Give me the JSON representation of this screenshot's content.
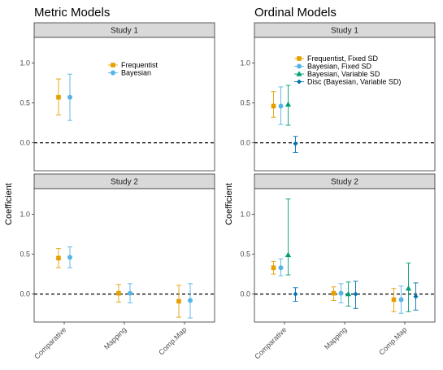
{
  "chart_data": [
    {
      "type": "errorbar",
      "title": "Metric Models",
      "ylabel": "Coefficient",
      "ylim": [
        -0.35,
        1.32
      ],
      "yticks": [
        0.0,
        0.5,
        1.0
      ],
      "yticks_labels": [
        "0.0",
        "0.5",
        "1.0"
      ],
      "categories": [
        "Comparative",
        "Mapping",
        "Comp.Map"
      ],
      "reference_line": 0,
      "legend_position": "top-right",
      "series": [
        {
          "name": "Frequentist",
          "color": "#E69F00",
          "marker": "square"
        },
        {
          "name": "Bayesian",
          "color": "#56B4E9",
          "marker": "circle"
        }
      ],
      "panels": [
        {
          "label": "Study 1",
          "points": [
            {
              "series": 0,
              "category": "Comparative",
              "y": 0.57,
              "lo": 0.35,
              "hi": 0.8
            },
            {
              "series": 1,
              "category": "Comparative",
              "y": 0.57,
              "lo": 0.28,
              "hi": 0.86
            }
          ]
        },
        {
          "label": "Study 2",
          "points": [
            {
              "series": 0,
              "category": "Comparative",
              "y": 0.45,
              "lo": 0.33,
              "hi": 0.57
            },
            {
              "series": 1,
              "category": "Comparative",
              "y": 0.46,
              "lo": 0.33,
              "hi": 0.59
            },
            {
              "series": 0,
              "category": "Mapping",
              "y": 0.01,
              "lo": -0.1,
              "hi": 0.12
            },
            {
              "series": 1,
              "category": "Mapping",
              "y": 0.01,
              "lo": -0.11,
              "hi": 0.13
            },
            {
              "series": 0,
              "category": "Comp.Map",
              "y": -0.09,
              "lo": -0.29,
              "hi": 0.11
            },
            {
              "series": 1,
              "category": "Comp.Map",
              "y": -0.08,
              "lo": -0.3,
              "hi": 0.13
            }
          ]
        }
      ]
    },
    {
      "type": "errorbar",
      "title": "Ordinal Models",
      "ylabel": "Coefficient",
      "ylim": [
        -0.35,
        1.32
      ],
      "yticks": [
        0.0,
        0.5,
        1.0
      ],
      "yticks_labels": [
        "0.0",
        "0.5",
        "1.0"
      ],
      "categories": [
        "Comparative",
        "Mapping",
        "Comp.Map"
      ],
      "reference_line": 0,
      "legend_position": "top-right",
      "series": [
        {
          "name": "Frequentist, Fixed SD",
          "color": "#E69F00",
          "marker": "square"
        },
        {
          "name": "Bayesian, Fixed SD",
          "color": "#56B4E9",
          "marker": "circle"
        },
        {
          "name": "Bayesian, Variable SD",
          "color": "#009E73",
          "marker": "triangle"
        },
        {
          "name": "Disc (Bayesian, Variable SD)",
          "color": "#0072B2",
          "marker": "diamond"
        }
      ],
      "panels": [
        {
          "label": "Study 1",
          "points": [
            {
              "series": 0,
              "category": "Comparative",
              "y": 0.46,
              "lo": 0.32,
              "hi": 0.64
            },
            {
              "series": 1,
              "category": "Comparative",
              "y": 0.46,
              "lo": 0.23,
              "hi": 0.7
            },
            {
              "series": 2,
              "category": "Comparative",
              "y": 0.48,
              "lo": 0.22,
              "hi": 0.72
            },
            {
              "series": 3,
              "category": "Comparative",
              "y": -0.01,
              "lo": -0.12,
              "hi": 0.08
            }
          ]
        },
        {
          "label": "Study 2",
          "points": [
            {
              "series": 0,
              "category": "Comparative",
              "y": 0.33,
              "lo": 0.25,
              "hi": 0.41
            },
            {
              "series": 1,
              "category": "Comparative",
              "y": 0.33,
              "lo": 0.23,
              "hi": 0.44
            },
            {
              "series": 2,
              "category": "Comparative",
              "y": 0.49,
              "lo": 0.24,
              "hi": 1.19
            },
            {
              "series": 3,
              "category": "Comparative",
              "y": 0.0,
              "lo": -0.09,
              "hi": 0.08
            },
            {
              "series": 0,
              "category": "Mapping",
              "y": 0.01,
              "lo": -0.08,
              "hi": 0.09
            },
            {
              "series": 1,
              "category": "Mapping",
              "y": 0.01,
              "lo": -0.11,
              "hi": 0.13
            },
            {
              "series": 2,
              "category": "Mapping",
              "y": 0.0,
              "lo": -0.15,
              "hi": 0.15
            },
            {
              "series": 3,
              "category": "Mapping",
              "y": 0.0,
              "lo": -0.18,
              "hi": 0.16
            },
            {
              "series": 0,
              "category": "Comp.Map",
              "y": -0.07,
              "lo": -0.22,
              "hi": 0.07
            },
            {
              "series": 1,
              "category": "Comp.Map",
              "y": -0.07,
              "lo": -0.24,
              "hi": 0.1
            },
            {
              "series": 2,
              "category": "Comp.Map",
              "y": 0.07,
              "lo": -0.22,
              "hi": 0.39
            },
            {
              "series": 3,
              "category": "Comp.Map",
              "y": -0.03,
              "lo": -0.2,
              "hi": 0.14
            }
          ]
        }
      ]
    }
  ]
}
